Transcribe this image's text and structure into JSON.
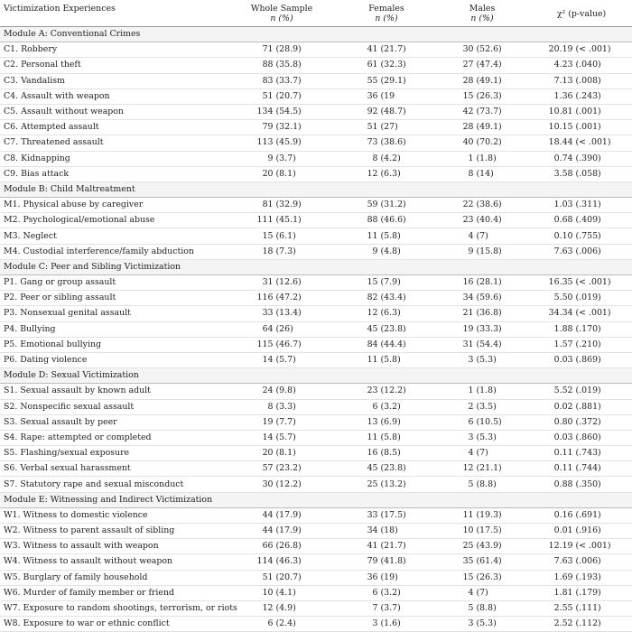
{
  "header": {
    "col0": "Victimization Experiences",
    "col1": "Whole Sample",
    "col2": "Females",
    "col3": "Males",
    "col4": "χ² (p-value)",
    "sub": "n (%)"
  },
  "modules": [
    {
      "title": "Module A: Conventional Crimes",
      "rows": [
        {
          "label": "C1. Robbery",
          "whole": [
            "71",
            "(28.9)"
          ],
          "female": [
            "41",
            "(21.7)"
          ],
          "male": [
            "30",
            "(52.6)"
          ],
          "chi": [
            "20.19",
            "(< .001)"
          ]
        },
        {
          "label": "C2. Personal theft",
          "whole": [
            "88",
            "(35.8)"
          ],
          "female": [
            "61",
            "(32.3)"
          ],
          "male": [
            "27",
            "(47.4)"
          ],
          "chi": [
            "4.23",
            "(.040)"
          ]
        },
        {
          "label": "C3. Vandalism",
          "whole": [
            "83",
            "(33.7)"
          ],
          "female": [
            "55",
            "(29.1)"
          ],
          "male": [
            "28",
            "(49.1)"
          ],
          "chi": [
            "7.13",
            "(.008)"
          ]
        },
        {
          "label": "C4. Assault with weapon",
          "whole": [
            "51",
            "(20.7)"
          ],
          "female": [
            "36",
            "(19"
          ],
          "male": [
            "15",
            "(26.3)"
          ],
          "chi": [
            "1.36",
            "(.243)"
          ]
        },
        {
          "label": "C5. Assault without weapon",
          "whole": [
            "134",
            "(54.5)"
          ],
          "female": [
            "92",
            "(48.7)"
          ],
          "male": [
            "42",
            "(73.7)"
          ],
          "chi": [
            "10.81",
            "(.001)"
          ]
        },
        {
          "label": "C6. Attempted assault",
          "whole": [
            "79",
            "(32.1)"
          ],
          "female": [
            "51",
            "(27)"
          ],
          "male": [
            "28",
            "(49.1)"
          ],
          "chi": [
            "10.15",
            "(.001)"
          ]
        },
        {
          "label": "C7. Threatened assault",
          "whole": [
            "113",
            "(45.9)"
          ],
          "female": [
            "73",
            "(38.6)"
          ],
          "male": [
            "40",
            "(70.2)"
          ],
          "chi": [
            "18.44",
            "(< .001)"
          ]
        },
        {
          "label": "C8. Kidnapping",
          "whole": [
            "9",
            "(3.7)"
          ],
          "female": [
            "8",
            "(4.2)"
          ],
          "male": [
            "1",
            "(1.8)"
          ],
          "chi": [
            "0.74",
            "(.390)"
          ]
        },
        {
          "label": "C9. Bias attack",
          "whole": [
            "20",
            "(8.1)"
          ],
          "female": [
            "12",
            "(6.3)"
          ],
          "male": [
            "8",
            "(14)"
          ],
          "chi": [
            "3.58",
            "(.058)"
          ]
        }
      ]
    },
    {
      "title": "Module B: Child Maltreatment",
      "rows": [
        {
          "label": "M1. Physical abuse by caregiver",
          "whole": [
            "81",
            "(32.9)"
          ],
          "female": [
            "59",
            "(31.2)"
          ],
          "male": [
            "22",
            "(38.6)"
          ],
          "chi": [
            "1.03",
            "(.311)"
          ]
        },
        {
          "label": "M2. Psychological/emotional abuse",
          "whole": [
            "111",
            "(45.1)"
          ],
          "female": [
            "88",
            "(46.6)"
          ],
          "male": [
            "23",
            "(40.4)"
          ],
          "chi": [
            "0.68",
            "(.409)"
          ]
        },
        {
          "label": "M3. Neglect",
          "whole": [
            "15",
            "(6.1)"
          ],
          "female": [
            "11",
            "(5.8)"
          ],
          "male": [
            "4",
            "(7)"
          ],
          "chi": [
            "0.10",
            "(.755)"
          ]
        },
        {
          "label": "M4. Custodial interference/family abduction",
          "whole": [
            "18",
            "(7.3)"
          ],
          "female": [
            "9",
            "(4.8)"
          ],
          "male": [
            "9",
            "(15.8)"
          ],
          "chi": [
            "7.63",
            "(.006)"
          ]
        }
      ]
    },
    {
      "title": "Module C: Peer and Sibling Victimization",
      "rows": [
        {
          "label": "P1. Gang or group assault",
          "whole": [
            "31",
            "(12.6)"
          ],
          "female": [
            "15",
            "(7.9)"
          ],
          "male": [
            "16",
            "(28.1)"
          ],
          "chi": [
            "16.35",
            "(< .001)"
          ]
        },
        {
          "label": "P2. Peer or sibling assault",
          "whole": [
            "116",
            "(47.2)"
          ],
          "female": [
            "82",
            "(43.4)"
          ],
          "male": [
            "34",
            "(59.6)"
          ],
          "chi": [
            "5.50",
            "(.019)"
          ]
        },
        {
          "label": "P3. Nonsexual genital assault",
          "whole": [
            "33",
            "(13.4)"
          ],
          "female": [
            "12",
            "(6.3)"
          ],
          "male": [
            "21",
            "(36.8)"
          ],
          "chi": [
            "34.34",
            "(< .001)"
          ]
        },
        {
          "label": "P4. Bullying",
          "whole": [
            "64",
            "(26)"
          ],
          "female": [
            "45",
            "(23.8)"
          ],
          "male": [
            "19",
            "(33.3)"
          ],
          "chi": [
            "1.88",
            "(.170)"
          ]
        },
        {
          "label": "P5. Emotional bullying",
          "whole": [
            "115",
            "(46.7)"
          ],
          "female": [
            "84",
            "(44.4)"
          ],
          "male": [
            "31",
            "(54.4)"
          ],
          "chi": [
            "1.57",
            "(.210)"
          ]
        },
        {
          "label": "P6. Dating violence",
          "whole": [
            "14",
            "(5.7)"
          ],
          "female": [
            "11",
            "(5.8)"
          ],
          "male": [
            "3",
            "(5.3)"
          ],
          "chi": [
            "0.03",
            "(.869)"
          ]
        }
      ]
    },
    {
      "title": "Module D: Sexual Victimization",
      "rows": [
        {
          "label": "S1. Sexual assault by known adult",
          "whole": [
            "24",
            "(9.8)"
          ],
          "female": [
            "23",
            "(12.2)"
          ],
          "male": [
            "1",
            "(1.8)"
          ],
          "chi": [
            "5.52",
            "(.019)"
          ]
        },
        {
          "label": "S2. Nonspecific sexual assault",
          "whole": [
            "8",
            "(3.3)"
          ],
          "female": [
            "6",
            "(3.2)"
          ],
          "male": [
            "2",
            "(3.5)"
          ],
          "chi": [
            "0.02",
            "(.881)"
          ]
        },
        {
          "label": "S3. Sexual assault by peer",
          "whole": [
            "19",
            "(7.7)"
          ],
          "female": [
            "13",
            "(6.9)"
          ],
          "male": [
            "6",
            "(10.5)"
          ],
          "chi": [
            "0.80",
            "(.372)"
          ]
        },
        {
          "label": "S4. Rape: attempted or completed",
          "whole": [
            "14",
            "(5.7)"
          ],
          "female": [
            "11",
            "(5.8)"
          ],
          "male": [
            "3",
            "(5.3)"
          ],
          "chi": [
            "0.03",
            "(.860)"
          ]
        },
        {
          "label": "S5. Flashing/sexual exposure",
          "whole": [
            "20",
            "(8.1)"
          ],
          "female": [
            "16",
            "(8.5)"
          ],
          "male": [
            "4",
            "(7)"
          ],
          "chi": [
            "0.11",
            "(.743)"
          ]
        },
        {
          "label": "S6. Verbal sexual harassment",
          "whole": [
            "57",
            "(23.2)"
          ],
          "female": [
            "45",
            "(23.8)"
          ],
          "male": [
            "12",
            "(21.1)"
          ],
          "chi": [
            "0.11",
            "(.744)"
          ]
        },
        {
          "label": "S7. Statutory rape and sexual misconduct",
          "whole": [
            "30",
            "(12.2)"
          ],
          "female": [
            "25",
            "(13.2)"
          ],
          "male": [
            "5",
            "(8.8)"
          ],
          "chi": [
            "0.88",
            "(.350)"
          ]
        }
      ]
    },
    {
      "title": "Module E: Witnessing and Indirect Victimization",
      "rows": [
        {
          "label": "W1. Witness to domestic violence",
          "whole": [
            "44",
            "(17.9)"
          ],
          "female": [
            "33",
            "(17.5)"
          ],
          "male": [
            "11",
            "(19.3)"
          ],
          "chi": [
            "0.16",
            "(.691)"
          ]
        },
        {
          "label": "W2. Witness to parent assault of sibling",
          "whole": [
            "44",
            "(17.9)"
          ],
          "female": [
            "34",
            "(18)"
          ],
          "male": [
            "10",
            "(17.5)"
          ],
          "chi": [
            "0.01",
            "(.916)"
          ]
        },
        {
          "label": "W3. Witness to assault with weapon",
          "whole": [
            "66",
            "(26.8)"
          ],
          "female": [
            "41",
            "(21.7)"
          ],
          "male": [
            "25",
            "(43.9)"
          ],
          "chi": [
            "12.19",
            "(< .001)"
          ]
        },
        {
          "label": "W4. Witness to assault without weapon",
          "whole": [
            "114",
            "(46.3)"
          ],
          "female": [
            "79",
            "(41.8)"
          ],
          "male": [
            "35",
            "(61.4)"
          ],
          "chi": [
            "7.63",
            "(.006)"
          ]
        },
        {
          "label": "W5. Burglary of family household",
          "whole": [
            "51",
            "(20.7)"
          ],
          "female": [
            "36",
            "(19)"
          ],
          "male": [
            "15",
            "(26.3)"
          ],
          "chi": [
            "1.69",
            "(.193)"
          ]
        },
        {
          "label": "W6. Murder of family member or friend",
          "whole": [
            "10",
            "(4.1)"
          ],
          "female": [
            "6",
            "(3.2)"
          ],
          "male": [
            "4",
            "(7)"
          ],
          "chi": [
            "1.81",
            "(.179)"
          ]
        },
        {
          "label": "W7. Exposure to random shootings, terrorism, or riots",
          "whole": [
            "12",
            "(4.9)"
          ],
          "female": [
            "7",
            "(3.7)"
          ],
          "male": [
            "5",
            "(8.8)"
          ],
          "chi": [
            "2.55",
            "(.111)"
          ]
        },
        {
          "label": "W8. Exposure to war or ethnic conflict",
          "whole": [
            "6",
            "(2.4)"
          ],
          "female": [
            "3",
            "(1.6)"
          ],
          "male": [
            "3",
            "(5.3)"
          ],
          "chi": [
            "2.52",
            "(.112)"
          ]
        }
      ]
    }
  ]
}
